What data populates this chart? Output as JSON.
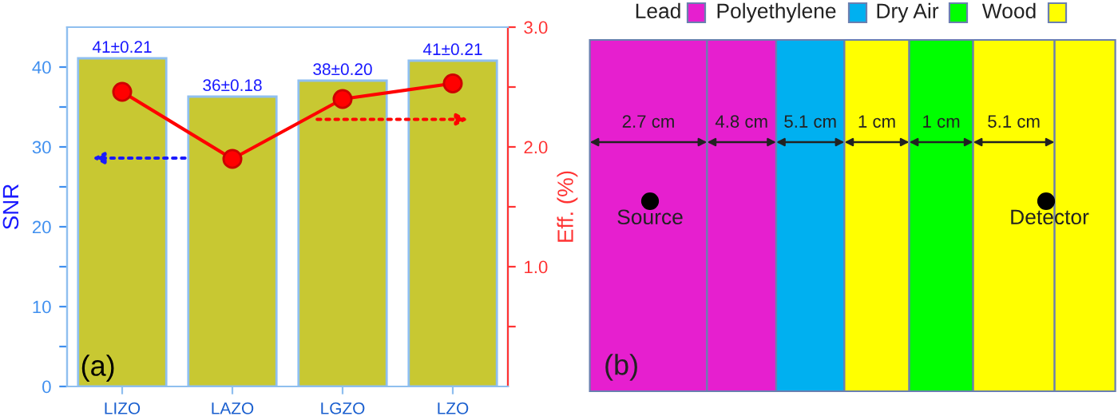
{
  "chart_data": [
    {
      "type": "bar",
      "categories": [
        "LIZO",
        "LAZO",
        "LGZO",
        "LZO"
      ],
      "ylabel": "SNR",
      "y2label": "Eff. (%)",
      "ylim": [
        0,
        45
      ],
      "yticks": [
        0,
        {
          "value": 5,
          "label": null
        },
        10,
        {
          "value": 15,
          "label": null
        },
        20,
        {
          "value": 25,
          "label": null
        },
        30,
        {
          "value": 35,
          "label": null
        },
        40
      ],
      "y2lim": [
        0,
        3
      ],
      "y2ticks": [
        {
          "value": 0.5,
          "label": null
        },
        {
          "value": 1,
          "label": "1.0"
        },
        {
          "value": 1.5,
          "label": null
        },
        {
          "value": 2,
          "label": "2.0"
        },
        {
          "value": 2.5,
          "label": null
        },
        {
          "value": 3,
          "label": "3.0"
        }
      ],
      "series": [
        {
          "type": "bar",
          "color": "#c8c832",
          "values": [
            41.1,
            36.3,
            38.3,
            40.8
          ],
          "value_labels": [
            "41±0.21",
            "36±0.18",
            "38±0.20",
            "41±0.21"
          ]
        },
        {
          "type": "line",
          "axis": "y2",
          "color": "#ff0000",
          "values": [
            2.46,
            1.9,
            2.4,
            2.53
          ]
        }
      ],
      "marker": "circle",
      "grid": false,
      "legend": false,
      "annotations": [
        "(a)"
      ]
    },
    {
      "type": "other",
      "categories": [
        "Lead",
        "Polyethylene",
        "Dry Air",
        "Wood"
      ],
      "colors": [
        "#e61fcf",
        "#00b0f0",
        "#00ff00",
        "#ffff00"
      ],
      "annotations": [
        "2.7 cm",
        "4.8 cm",
        "5.1 cm",
        "1 cm",
        "1 cm",
        "5.1 cm",
        "Source",
        "Detector",
        "(b)"
      ]
    }
  ]
}
